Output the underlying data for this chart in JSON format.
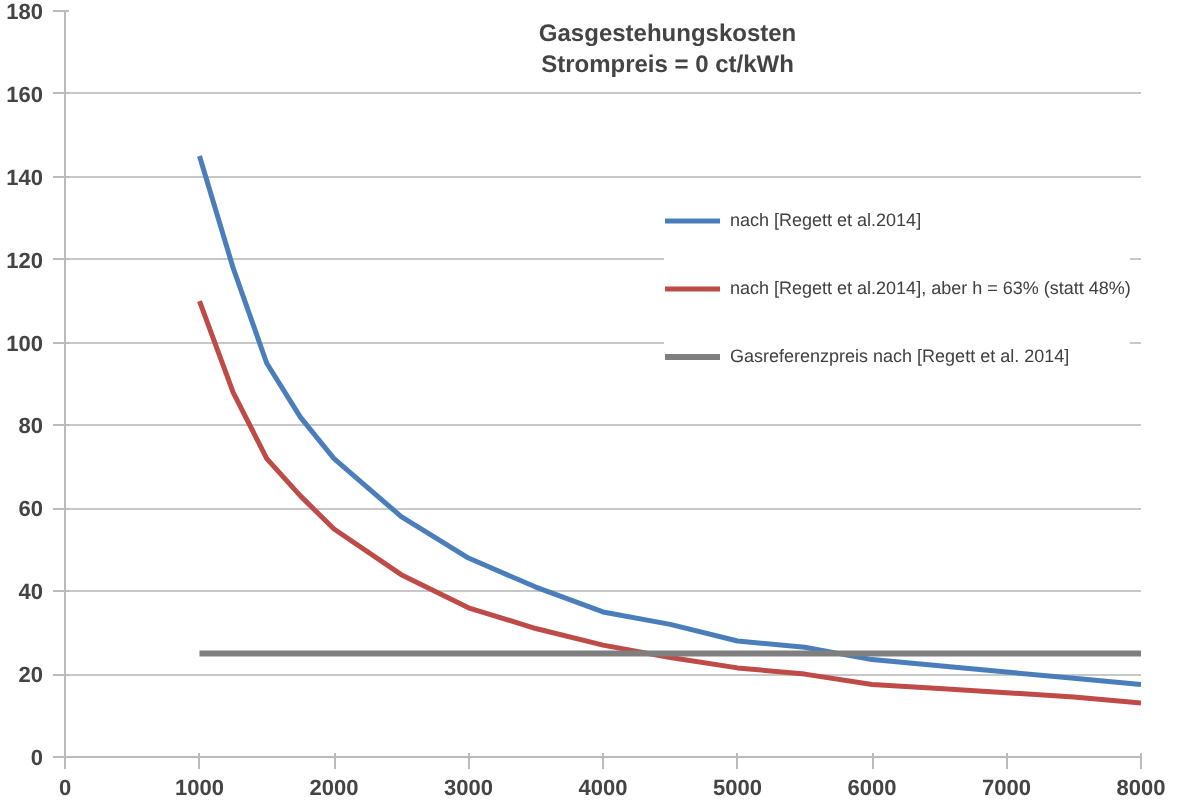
{
  "chart_data": {
    "type": "line",
    "title": "Gasgestehungskosten\nStrompreis = 0 ct/kWh",
    "x": [
      1000,
      1250,
      1500,
      1750,
      2000,
      2500,
      3000,
      3500,
      4000,
      4500,
      5000,
      5500,
      6000,
      6500,
      7000,
      7500,
      8000
    ],
    "series": [
      {
        "name": "nach [Regett et al.2014]",
        "color": "#4a7ebb",
        "values": [
          145,
          118,
          95,
          82,
          72,
          58,
          48,
          41,
          35,
          32,
          28,
          26.5,
          23.5,
          22,
          20.5,
          19,
          17.5
        ]
      },
      {
        "name": "nach [Regett et al.2014], aber h = 63% (statt 48%)",
        "color": "#be4b48",
        "values": [
          110,
          88,
          72,
          63,
          55,
          44,
          36,
          31,
          27,
          24,
          21.5,
          20,
          17.5,
          16.5,
          15.5,
          14.5,
          13
        ]
      },
      {
        "name": "Gasreferenzpreis nach [Regett et al. 2014]",
        "color": "#7f7f7f",
        "x": [
          1000,
          8000
        ],
        "values": [
          25,
          25
        ]
      }
    ],
    "xlim": [
      0,
      8000
    ],
    "xticks": [
      0,
      1000,
      2000,
      3000,
      4000,
      5000,
      6000,
      7000,
      8000
    ],
    "ylim": [
      0,
      180
    ],
    "yticks": [
      0,
      20,
      40,
      60,
      80,
      100,
      120,
      140,
      160,
      180
    ],
    "grid": "y",
    "legend": "right",
    "marker": "none",
    "line_style": "solid"
  }
}
